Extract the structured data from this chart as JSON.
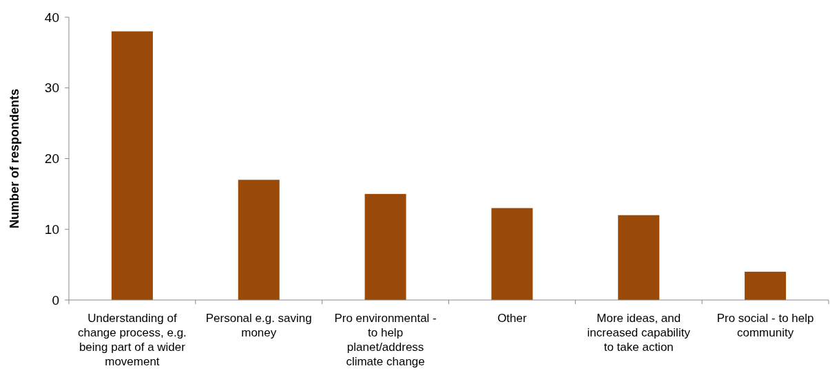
{
  "chart_data": {
    "type": "bar",
    "ylabel": "Number of respondents",
    "categories": [
      "Understanding of change process, e.g. being part of a wider movement",
      "Personal e.g. saving money",
      "Pro environmental - to help planet/address climate change",
      "Other",
      "More ideas, and increased capability to take action",
      "Pro social - to help community"
    ],
    "values": [
      38,
      17,
      15,
      13,
      12,
      4
    ],
    "color": "#994a08",
    "ylim": [
      0,
      40
    ],
    "yticks": [
      0,
      10,
      20,
      30,
      40
    ],
    "grid": false
  }
}
